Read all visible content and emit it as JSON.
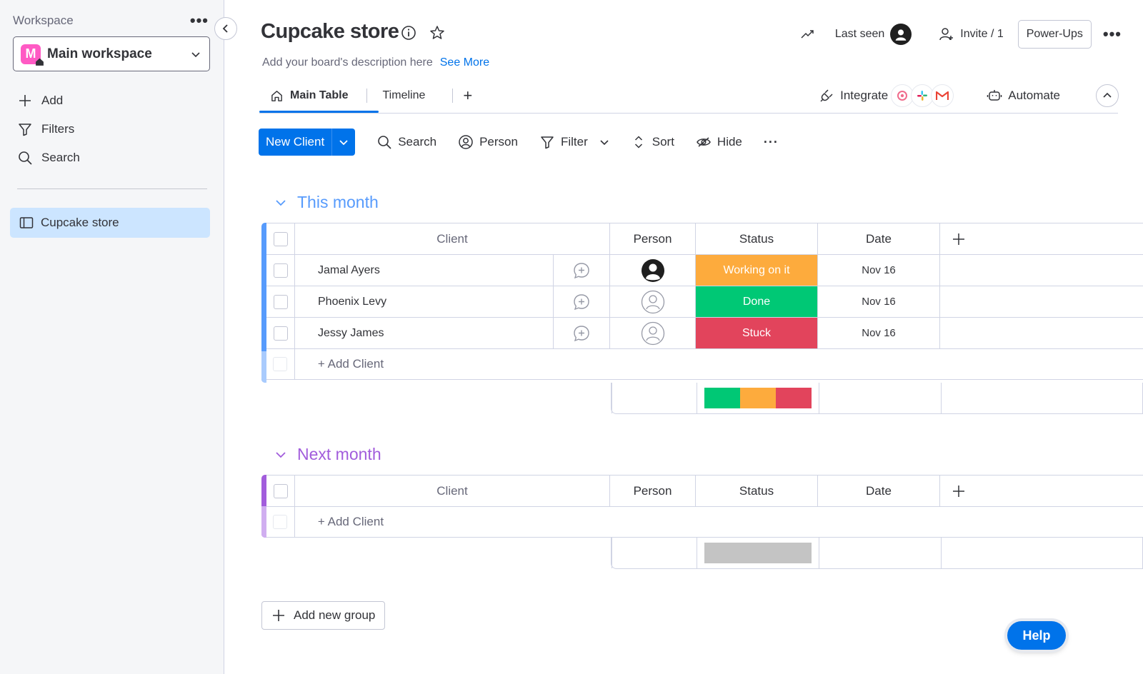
{
  "sidebar": {
    "workspace_label": "Workspace",
    "workspace_initial": "M",
    "workspace_name": "Main workspace",
    "items": [
      {
        "label": "Add",
        "icon": "plus-icon"
      },
      {
        "label": "Filters",
        "icon": "filter-icon"
      },
      {
        "label": "Search",
        "icon": "search-icon"
      }
    ],
    "board": {
      "label": "Cupcake store",
      "icon": "board-icon"
    }
  },
  "header": {
    "title": "Cupcake store",
    "description": "Add your board's description here",
    "see_more": "See More",
    "last_seen": "Last seen",
    "invite": "Invite / 1",
    "powerups": "Power-Ups"
  },
  "tabs": {
    "items": [
      {
        "label": "Main Table",
        "icon": "home-icon",
        "active": true
      },
      {
        "label": "Timeline",
        "active": false
      }
    ],
    "add_label": "+",
    "integrate": "Integrate",
    "automate": "Automate"
  },
  "toolbar": {
    "new_label": "New Client",
    "search": "Search",
    "person": "Person",
    "filter": "Filter",
    "sort": "Sort",
    "hide": "Hide"
  },
  "columns": {
    "client": "Client",
    "person": "Person",
    "status": "Status",
    "date": "Date"
  },
  "groups": [
    {
      "title": "This month",
      "color": "#579bfc",
      "rows": [
        {
          "client": "Jamal Ayers",
          "person": "filled",
          "status": "Working on it",
          "status_color": "#fdab3d",
          "date": "Nov 16"
        },
        {
          "client": "Phoenix Levy",
          "person": "empty",
          "status": "Done",
          "status_color": "#00c875",
          "date": "Nov 16"
        },
        {
          "client": "Jessy James",
          "person": "empty",
          "status": "Stuck",
          "status_color": "#e2445c",
          "date": "Nov 16"
        }
      ],
      "add_label": "+ Add Client",
      "summary": [
        {
          "color": "#00c875",
          "share": 0.3333
        },
        {
          "color": "#fdab3d",
          "share": 0.3333
        },
        {
          "color": "#e2445c",
          "share": 0.3334
        }
      ]
    },
    {
      "title": "Next month",
      "color": "#a25ddc",
      "rows": [],
      "add_label": "+ Add Client",
      "summary": [
        {
          "color": "#c4c4c4",
          "share": 1
        }
      ]
    }
  ],
  "add_group": "Add new group",
  "help": "Help"
}
